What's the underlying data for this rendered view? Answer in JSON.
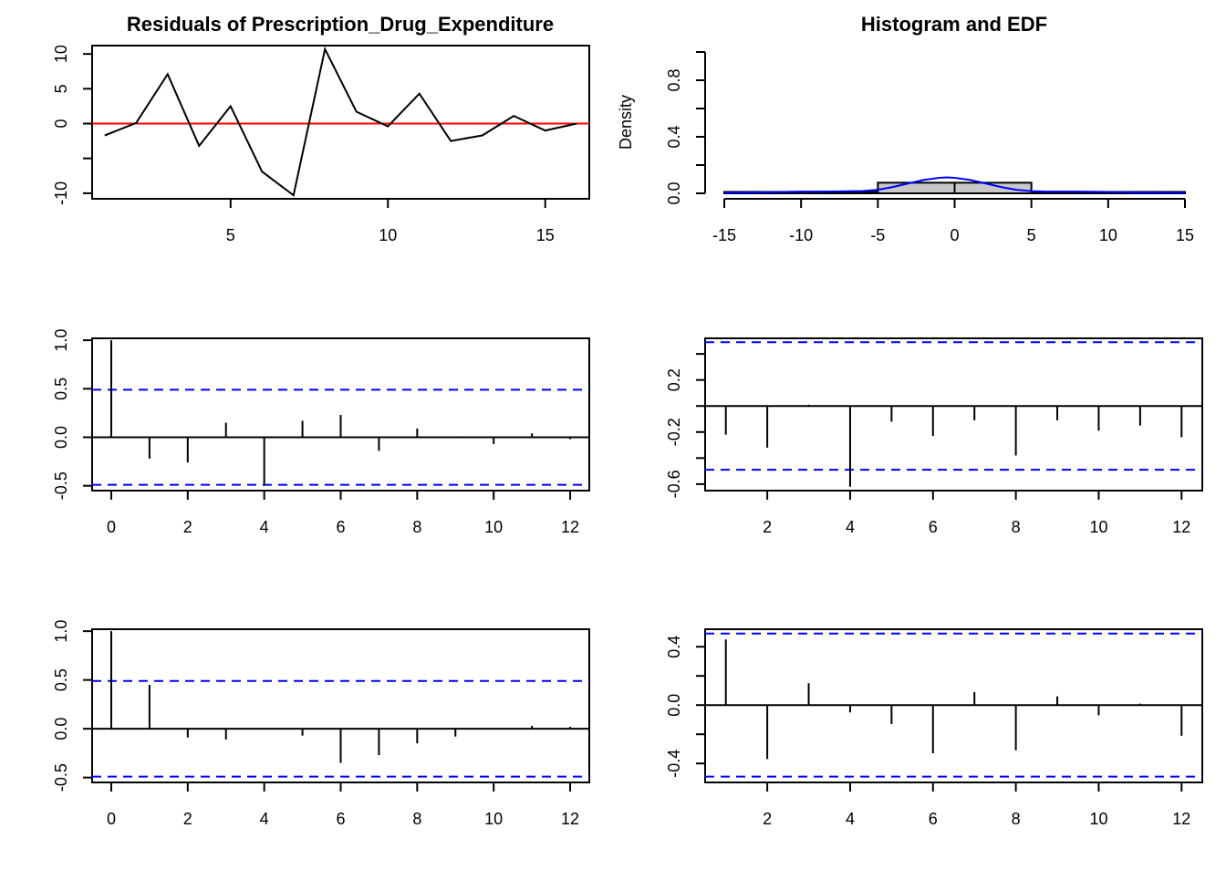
{
  "colors": {
    "axis": "#000000",
    "residual_line": "#000000",
    "zero_line": "#ff0000",
    "confidence_band": "#0000ff",
    "density_curve": "#0000ff",
    "histogram_fill": "#c8c8c8"
  },
  "chart_data": [
    {
      "id": "residuals",
      "type": "line",
      "title": "Residuals of Prescription_Drug_Expenditure",
      "xlabel": "",
      "ylabel": "",
      "xlim": [
        0.6,
        16.4
      ],
      "ylim": [
        -10.8,
        11.2
      ],
      "xticks": [
        5,
        10,
        15
      ],
      "yticks": [
        -10,
        -5,
        0,
        5,
        10
      ],
      "ytick_labels": [
        "-10",
        "",
        "0",
        "5",
        "10"
      ],
      "x": [
        1,
        2,
        3,
        4,
        5,
        6,
        7,
        8,
        9,
        10,
        11,
        12,
        13,
        14,
        15,
        16
      ],
      "y": [
        -1.7,
        0.1,
        7.1,
        -3.2,
        2.5,
        -6.9,
        -10.3,
        10.7,
        1.7,
        -0.4,
        4.3,
        -2.5,
        -1.7,
        1.1,
        -1.0,
        0.0
      ],
      "reference_line": 0
    },
    {
      "id": "histogram",
      "type": "bar",
      "title": "Histogram and EDF",
      "xlabel": "",
      "ylabel": "Density",
      "xlim": [
        -15,
        15
      ],
      "ylim": [
        0,
        1.0
      ],
      "xticks": [
        -15,
        -10,
        -5,
        0,
        5,
        10,
        15
      ],
      "yticks": [
        0.0,
        0.2,
        0.4,
        0.6,
        0.8,
        1.0
      ],
      "ytick_labels": [
        "0.0",
        "",
        "0.4",
        "",
        "0.8",
        ""
      ],
      "bins": [
        {
          "from": -15,
          "to": -5,
          "value": 0.01
        },
        {
          "from": -5,
          "to": 0,
          "value": 0.075
        },
        {
          "from": 0,
          "to": 5,
          "value": 0.075
        },
        {
          "from": 5,
          "to": 15,
          "value": 0.01
        }
      ],
      "density_curve": {
        "x": [
          -15,
          -12,
          -10,
          -8,
          -6,
          -5,
          -4,
          -3,
          -2,
          -1,
          -0.5,
          0,
          1,
          2,
          3,
          4,
          5,
          6,
          8,
          10,
          12,
          15
        ],
        "y": [
          0.003,
          0.008,
          0.012,
          0.013,
          0.016,
          0.025,
          0.045,
          0.07,
          0.095,
          0.11,
          0.113,
          0.11,
          0.095,
          0.07,
          0.045,
          0.025,
          0.015,
          0.012,
          0.012,
          0.01,
          0.006,
          0.003
        ]
      }
    },
    {
      "id": "acf",
      "type": "bar",
      "title": "",
      "xlabel": "",
      "ylabel": "",
      "xlim": [
        -0.5,
        12.5
      ],
      "ylim": [
        -0.55,
        1.02
      ],
      "xticks": [
        0,
        2,
        4,
        6,
        8,
        10,
        12
      ],
      "yticks": [
        -0.5,
        0.0,
        0.5,
        1.0
      ],
      "ytick_labels": [
        "-0.5",
        "0.0",
        "0.5",
        "1.0"
      ],
      "x": [
        0,
        1,
        2,
        3,
        4,
        5,
        6,
        7,
        8,
        9,
        10,
        11,
        12
      ],
      "values": [
        1.0,
        -0.22,
        -0.26,
        0.15,
        -0.5,
        0.17,
        0.23,
        -0.14,
        0.09,
        -0.01,
        -0.07,
        0.04,
        -0.02
      ],
      "conf_bound": 0.49
    },
    {
      "id": "pacf",
      "type": "bar",
      "title": "",
      "xlabel": "",
      "ylabel": "",
      "xlim": [
        0.5,
        12.5
      ],
      "ylim": [
        -0.65,
        0.52
      ],
      "xticks": [
        2,
        4,
        6,
        8,
        10,
        12
      ],
      "yticks": [
        -0.6,
        -0.4,
        -0.2,
        0.0,
        0.2,
        0.4
      ],
      "ytick_labels": [
        "-0.6",
        "",
        "-0.2",
        "",
        "0.2",
        ""
      ],
      "x": [
        1,
        2,
        3,
        4,
        5,
        6,
        7,
        8,
        9,
        10,
        11,
        12
      ],
      "values": [
        -0.22,
        -0.32,
        0.01,
        -0.62,
        -0.12,
        -0.23,
        -0.11,
        -0.38,
        -0.11,
        -0.19,
        -0.15,
        -0.24
      ],
      "conf_bound": 0.49
    },
    {
      "id": "acf_squared",
      "type": "bar",
      "title": "",
      "xlabel": "",
      "ylabel": "",
      "xlim": [
        -0.5,
        12.5
      ],
      "ylim": [
        -0.55,
        1.02
      ],
      "xticks": [
        0,
        2,
        4,
        6,
        8,
        10,
        12
      ],
      "yticks": [
        -0.5,
        0.0,
        0.5,
        1.0
      ],
      "ytick_labels": [
        "-0.5",
        "0.0",
        "0.5",
        "1.0"
      ],
      "x": [
        0,
        1,
        2,
        3,
        4,
        5,
        6,
        7,
        8,
        9,
        10,
        11,
        12
      ],
      "values": [
        1.0,
        0.45,
        -0.09,
        -0.11,
        -0.01,
        -0.07,
        -0.35,
        -0.27,
        -0.15,
        -0.08,
        -0.01,
        0.03,
        0.02
      ],
      "conf_bound": 0.49
    },
    {
      "id": "pacf_squared",
      "type": "bar",
      "title": "",
      "xlabel": "",
      "ylabel": "",
      "xlim": [
        0.5,
        12.5
      ],
      "ylim": [
        -0.53,
        0.52
      ],
      "xticks": [
        2,
        4,
        6,
        8,
        10,
        12
      ],
      "yticks": [
        -0.4,
        -0.2,
        0.0,
        0.2,
        0.4
      ],
      "ytick_labels": [
        "-0.4",
        "",
        "0.0",
        "",
        "0.4"
      ],
      "x": [
        1,
        2,
        3,
        4,
        5,
        6,
        7,
        8,
        9,
        10,
        11,
        12
      ],
      "values": [
        0.45,
        -0.37,
        0.15,
        -0.05,
        -0.13,
        -0.33,
        0.09,
        -0.31,
        0.06,
        -0.07,
        0.01,
        -0.21
      ],
      "conf_bound": 0.49
    }
  ]
}
